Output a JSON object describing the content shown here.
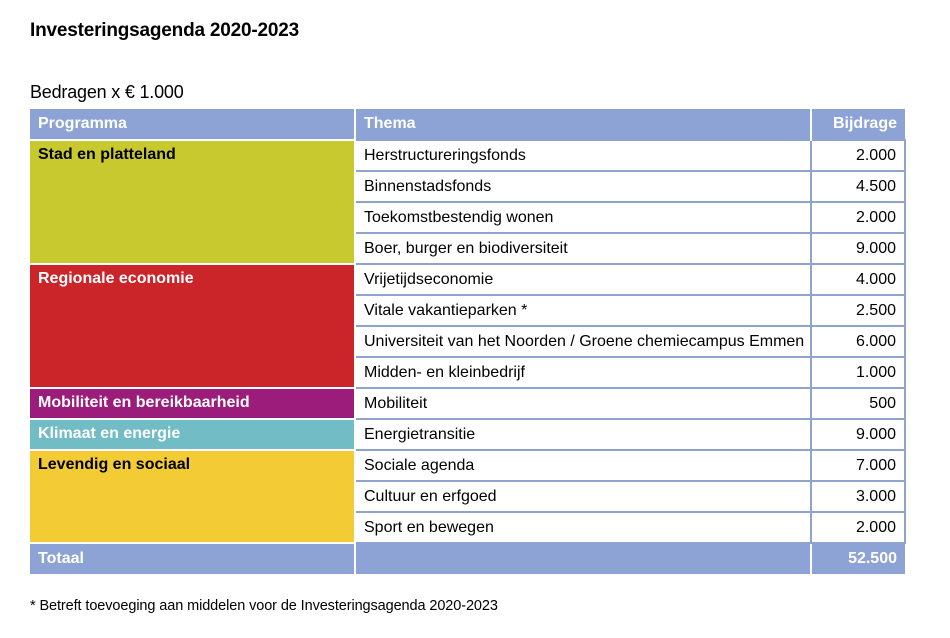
{
  "title": "Investeringsagenda 2020-2023",
  "subtitle": "Bedragen x € 1.000",
  "table": {
    "headers": {
      "programma": "Programma",
      "thema": "Thema",
      "bijdrage": "Bijdrage"
    },
    "header_color": "#8da3d6",
    "groups": [
      {
        "programma": "Stad en platteland",
        "color": "#c8c92e",
        "text_color": "#000000",
        "rows": [
          {
            "thema": "Herstructureringsfonds",
            "bijdrage": "2.000"
          },
          {
            "thema": "Binnenstadsfonds",
            "bijdrage": "4.500"
          },
          {
            "thema": "Toekomstbestendig wonen",
            "bijdrage": "2.000"
          },
          {
            "thema": "Boer, burger en biodiversiteit",
            "bijdrage": "9.000"
          }
        ]
      },
      {
        "programma": "Regionale economie",
        "color": "#cc2529",
        "text_color": "#ffffff",
        "rows": [
          {
            "thema": "Vrijetijdseconomie",
            "bijdrage": "4.000"
          },
          {
            "thema": "Vitale vakantieparken *",
            "bijdrage": "2.500"
          },
          {
            "thema": "Universiteit van het Noorden / Groene chemiecampus Emmen",
            "bijdrage": "6.000"
          },
          {
            "thema": "Midden- en kleinbedrijf",
            "bijdrage": "1.000"
          }
        ]
      },
      {
        "programma": "Mobiliteit en bereikbaarheid",
        "color": "#9b1c7a",
        "text_color": "#ffffff",
        "rows": [
          {
            "thema": "Mobiliteit",
            "bijdrage": "500"
          }
        ]
      },
      {
        "programma": "Klimaat en energie",
        "color": "#72bcc5",
        "text_color": "#ffffff",
        "rows": [
          {
            "thema": "Energietransitie",
            "bijdrage": "9.000"
          }
        ]
      },
      {
        "programma": "Levendig en sociaal",
        "color": "#f2cb35",
        "text_color": "#000000",
        "rows": [
          {
            "thema": "Sociale agenda",
            "bijdrage": "7.000"
          },
          {
            "thema": "Cultuur en erfgoed",
            "bijdrage": "3.000"
          },
          {
            "thema": "Sport en bewegen",
            "bijdrage": "2.000"
          }
        ]
      }
    ],
    "total": {
      "label": "Totaal",
      "thema": "",
      "bijdrage": "52.500"
    }
  },
  "footnote": "* Betreft toevoeging aan middelen voor de Investeringsagenda 2020-2023"
}
